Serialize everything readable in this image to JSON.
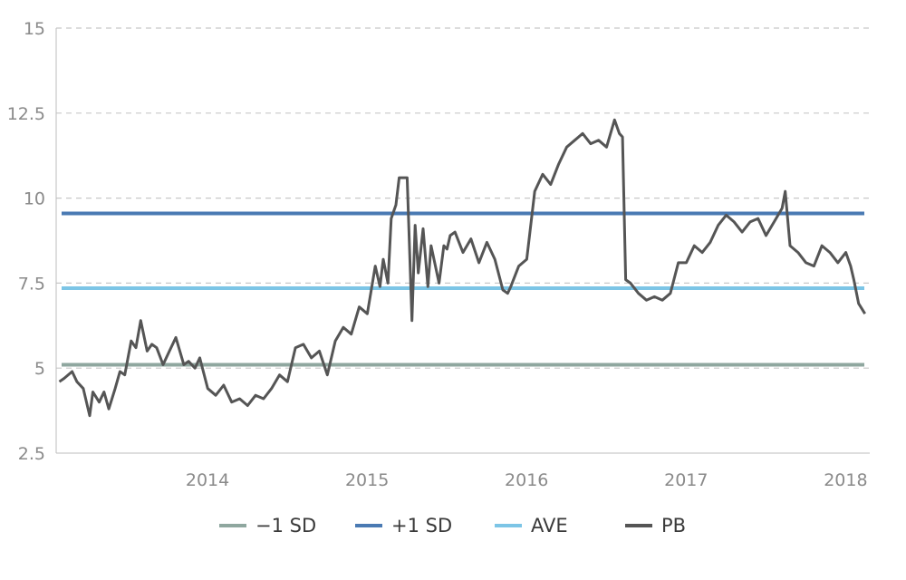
{
  "chart_data": {
    "type": "line",
    "ylim": [
      2.5,
      15
    ],
    "yticks": [
      "15",
      "12.5",
      "10",
      "7.5",
      "5",
      "2.5"
    ],
    "ytick_values": [
      15,
      12.5,
      10,
      7.5,
      5,
      2.5
    ],
    "xlim": [
      2013.25,
      2018.35
    ],
    "xticks": [
      "2014",
      "2015",
      "2016",
      "2017",
      "2018"
    ],
    "xtick_values": [
      2014.0,
      2015.0,
      2016.0,
      2017.0,
      2018.0
    ],
    "grid": "horizontal-dashed",
    "legend_position": "bottom",
    "reference_lines": [
      {
        "name": "−1 SD",
        "value": 5.1,
        "color": "#8fa79f"
      },
      {
        "name": "+1 SD",
        "value": 9.55,
        "color": "#4a7ab3"
      },
      {
        "name": "AVE",
        "value": 7.35,
        "color": "#7cc5e6"
      }
    ],
    "series": [
      {
        "name": "PB",
        "color": "#555555",
        "x": [
          2013.27,
          2013.3,
          2013.35,
          2013.38,
          2013.42,
          2013.46,
          2013.48,
          2013.52,
          2013.55,
          2013.58,
          2013.62,
          2013.65,
          2013.68,
          2013.72,
          2013.75,
          2013.78,
          2013.82,
          2013.85,
          2013.88,
          2013.92,
          2013.96,
          2014.0,
          2014.05,
          2014.08,
          2014.12,
          2014.15,
          2014.2,
          2014.25,
          2014.3,
          2014.35,
          2014.4,
          2014.45,
          2014.5,
          2014.55,
          2014.6,
          2014.65,
          2014.7,
          2014.75,
          2014.8,
          2014.85,
          2014.9,
          2014.95,
          2015.0,
          2015.05,
          2015.1,
          2015.15,
          2015.2,
          2015.25,
          2015.28,
          2015.3,
          2015.33,
          2015.35,
          2015.38,
          2015.4,
          2015.45,
          2015.48,
          2015.5,
          2015.52,
          2015.55,
          2015.58,
          2015.6,
          2015.65,
          2015.68,
          2015.7,
          2015.72,
          2015.75,
          2015.8,
          2015.85,
          2015.9,
          2015.95,
          2016.0,
          2016.05,
          2016.08,
          2016.1,
          2016.15,
          2016.2,
          2016.25,
          2016.3,
          2016.35,
          2016.4,
          2016.45,
          2016.5,
          2016.55,
          2016.6,
          2016.65,
          2016.7,
          2016.75,
          2016.78,
          2016.8,
          2016.82,
          2016.85,
          2016.9,
          2016.95,
          2017.0,
          2017.05,
          2017.1,
          2017.15,
          2017.2,
          2017.25,
          2017.3,
          2017.35,
          2017.4,
          2017.45,
          2017.5,
          2017.55,
          2017.6,
          2017.65,
          2017.7,
          2017.75,
          2017.8,
          2017.82,
          2017.85,
          2017.9,
          2017.95,
          2018.0,
          2018.05,
          2018.1,
          2018.15,
          2018.2,
          2018.23,
          2018.25,
          2018.28,
          2018.32
        ],
        "y": [
          4.6,
          4.7,
          4.9,
          4.6,
          4.4,
          3.6,
          4.3,
          4.0,
          4.3,
          3.8,
          4.4,
          4.9,
          4.8,
          5.8,
          5.6,
          6.4,
          5.5,
          5.7,
          5.6,
          5.1,
          5.5,
          5.9,
          5.1,
          5.2,
          5.0,
          5.3,
          4.4,
          4.2,
          4.5,
          4.0,
          4.1,
          3.9,
          4.2,
          4.1,
          4.4,
          4.8,
          4.6,
          5.6,
          5.7,
          5.3,
          5.5,
          4.8,
          5.8,
          6.2,
          6.0,
          6.8,
          6.6,
          8.0,
          7.4,
          8.2,
          7.5,
          9.4,
          9.8,
          10.6,
          10.6,
          6.4,
          9.2,
          7.8,
          9.1,
          7.4,
          8.6,
          7.5,
          8.6,
          8.5,
          8.9,
          9.0,
          8.4,
          8.8,
          8.1,
          8.7,
          8.2,
          7.3,
          7.2,
          7.4,
          8.0,
          8.2,
          10.2,
          10.7,
          10.4,
          11.0,
          11.5,
          11.7,
          11.9,
          11.6,
          11.7,
          11.5,
          12.3,
          11.9,
          11.8,
          7.6,
          7.5,
          7.2,
          7.0,
          7.1,
          7.0,
          7.2,
          8.1,
          8.1,
          8.6,
          8.4,
          8.7,
          9.2,
          9.5,
          9.3,
          9.0,
          9.3,
          9.4,
          8.9,
          9.3,
          9.7,
          10.2,
          8.6,
          8.4,
          8.1,
          8.0,
          8.6,
          8.4,
          8.1,
          8.4,
          8.0,
          7.6,
          6.9,
          6.6
        ]
      }
    ],
    "legend": [
      {
        "label": "−1 SD",
        "color": "#8fa79f"
      },
      {
        "label": "+1 SD",
        "color": "#4a7ab3"
      },
      {
        "label": "AVE",
        "color": "#7cc5e6"
      },
      {
        "label": "PB",
        "color": "#555555"
      }
    ]
  }
}
